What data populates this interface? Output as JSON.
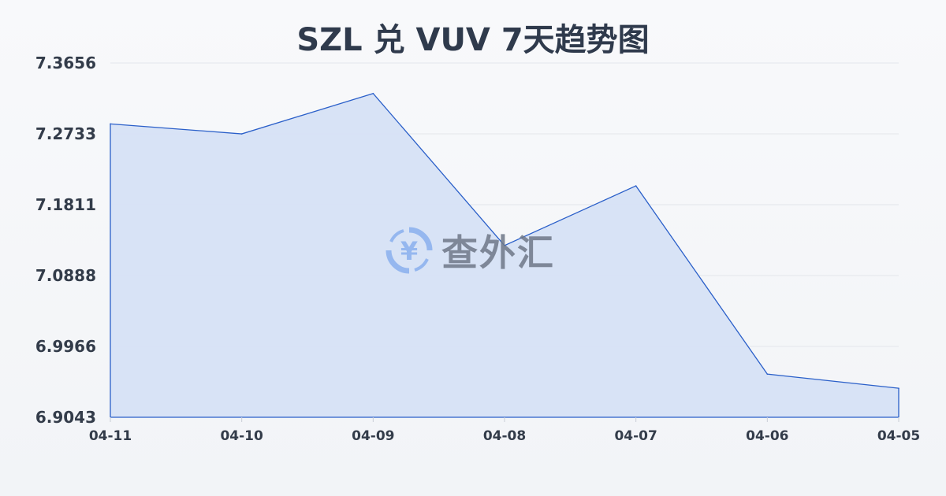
{
  "chart_data": {
    "type": "area",
    "title": "SZL 兑 VUV 7天趋势图",
    "categories": [
      "04-11",
      "04-10",
      "04-09",
      "04-08",
      "04-07",
      "04-06",
      "04-05"
    ],
    "values": [
      7.2863,
      7.2733,
      7.3259,
      7.1279,
      7.2056,
      6.9605,
      6.9421
    ],
    "yticks": [
      "7.3656",
      "7.2733",
      "7.1811",
      "7.0888",
      "6.9966",
      "6.9043"
    ],
    "ylim": [
      6.9043,
      7.3656
    ],
    "grid": true,
    "line_color": "#2a5fc9",
    "fill_color": "#d6e2f6"
  },
  "watermark": {
    "text": "查外汇",
    "icon": "yen-exchange-icon"
  }
}
